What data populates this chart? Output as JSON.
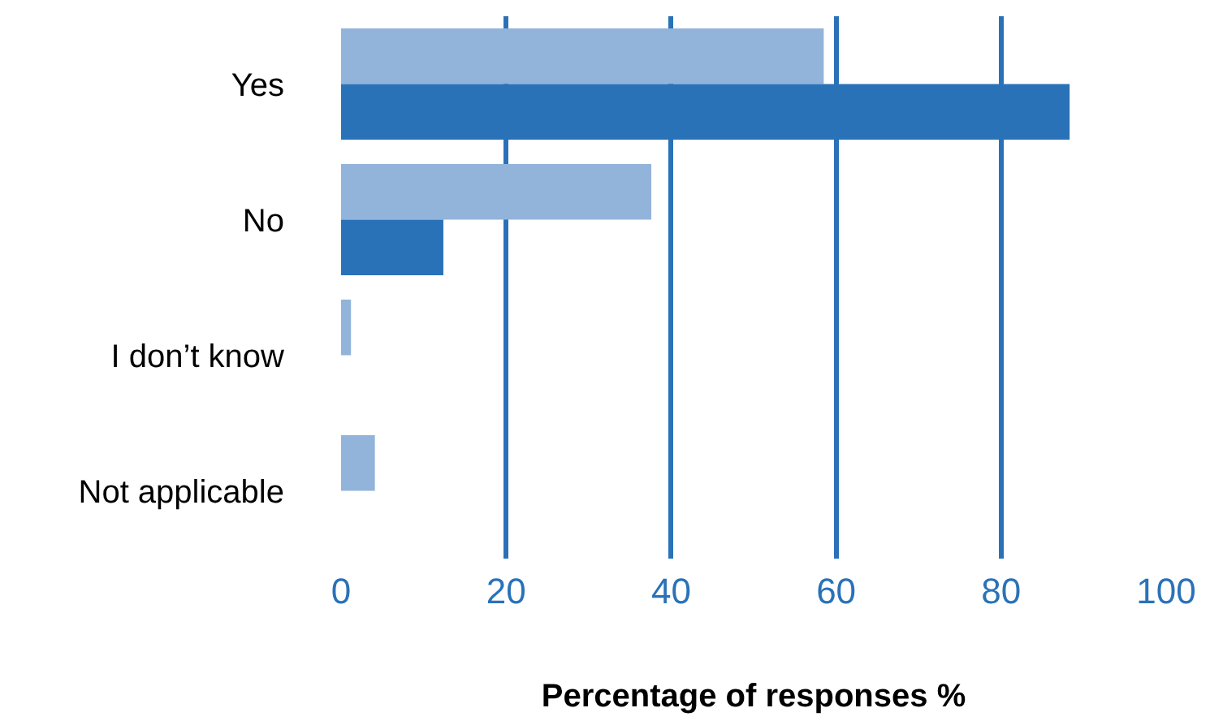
{
  "chart_data": {
    "type": "bar",
    "orientation": "horizontal",
    "xlabel": "Percentage of responses %",
    "categories": [
      "Yes",
      "No",
      "I don’t know",
      "Not applicable"
    ],
    "series": [
      {
        "color": "#92b4da",
        "values": [
          58.5,
          37.6,
          1.2,
          4.1
        ]
      },
      {
        "color": "#2a72b8",
        "values": [
          88.3,
          12.4,
          0,
          0
        ]
      }
    ],
    "xlim": [
      0,
      100
    ],
    "xticks": [
      0,
      20,
      40,
      60,
      80,
      100
    ],
    "grid": "x",
    "legend": false
  }
}
